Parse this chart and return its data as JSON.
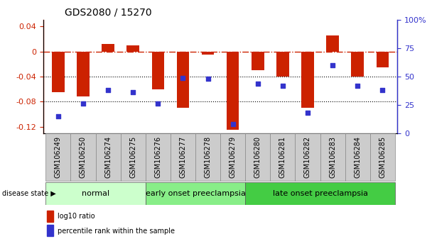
{
  "title": "GDS2080 / 15270",
  "samples": [
    "GSM106249",
    "GSM106250",
    "GSM106274",
    "GSM106275",
    "GSM106276",
    "GSM106277",
    "GSM106278",
    "GSM106279",
    "GSM106280",
    "GSM106281",
    "GSM106282",
    "GSM106283",
    "GSM106284",
    "GSM106285"
  ],
  "log10_ratio": [
    -0.065,
    -0.072,
    0.012,
    0.01,
    -0.06,
    -0.09,
    -0.005,
    -0.125,
    -0.03,
    -0.04,
    -0.09,
    0.025,
    -0.04,
    -0.025
  ],
  "percentile_rank": [
    15,
    26,
    38,
    36,
    26,
    49,
    48,
    8,
    44,
    42,
    18,
    60,
    42,
    38
  ],
  "groups": [
    {
      "label": "normal",
      "start": 0,
      "end": 4,
      "color": "#ccffcc"
    },
    {
      "label": "early onset preeclampsia",
      "start": 4,
      "end": 8,
      "color": "#88ee88"
    },
    {
      "label": "late onset preeclampsia",
      "start": 8,
      "end": 14,
      "color": "#44cc44"
    }
  ],
  "ylim_left": [
    -0.13,
    0.05
  ],
  "ylim_right": [
    0,
    100
  ],
  "bar_color": "#cc2200",
  "dot_color": "#3333cc",
  "hline_color": "#cc2200",
  "dot_style": "s",
  "dot_size": 5,
  "legend_bar_label": "log10 ratio",
  "legend_dot_label": "percentile rank within the sample",
  "left_yticks": [
    0.04,
    0.0,
    -0.04,
    -0.08,
    -0.12
  ],
  "right_yticks": [
    0,
    25,
    50,
    75,
    100
  ],
  "right_yticklabels": [
    "0",
    "25",
    "50",
    "75",
    "100%"
  ],
  "bar_width": 0.5,
  "tick_label_color": "#aaaaaa",
  "group_text_fontsize": 8,
  "sample_fontsize": 7,
  "title_fontsize": 10
}
